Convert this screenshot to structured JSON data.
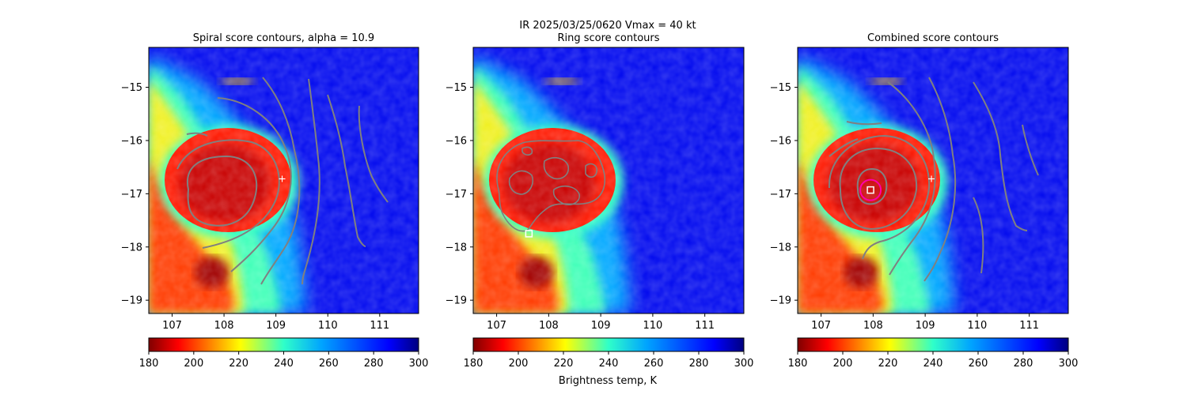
{
  "figure": {
    "suptitle_line1": "IR  2025/03/25/0620    Vmax = 40 kt",
    "colorbar_label": "Brightness temp, K"
  },
  "chart_data": [
    {
      "type": "heatmap",
      "title": "Spiral score contours, alpha = 10.9",
      "xticks": [
        107,
        108,
        109,
        110,
        111
      ],
      "yticks": [
        -15,
        -16,
        -17,
        -18,
        -19
      ],
      "xlim": [
        106.55,
        111.75
      ],
      "ylim": [
        -19.25,
        -14.25
      ],
      "colormap": "jet_r",
      "markers": [
        {
          "symbol": "plus",
          "x": 109.12,
          "y": -16.72,
          "color": "#ffffff"
        }
      ],
      "colorbar": {
        "ticks": [
          180,
          200,
          220,
          240,
          260,
          280,
          300
        ],
        "range": [
          180,
          300
        ]
      }
    },
    {
      "type": "heatmap",
      "title": "Ring score contours",
      "xticks": [
        107,
        108,
        109,
        110,
        111
      ],
      "yticks": [
        -15,
        -16,
        -17,
        -18,
        -19
      ],
      "xlim": [
        106.55,
        111.75
      ],
      "ylim": [
        -19.25,
        -14.25
      ],
      "colormap": "jet_r",
      "markers": [
        {
          "symbol": "square",
          "x": 107.62,
          "y": -17.75,
          "color": "#ffffff"
        }
      ],
      "colorbar": {
        "ticks": [
          180,
          200,
          220,
          240,
          260,
          280,
          300
        ],
        "range": [
          180,
          300
        ]
      }
    },
    {
      "type": "heatmap",
      "title": "Combined score contours",
      "xticks": [
        107,
        108,
        109,
        110,
        111
      ],
      "yticks": [
        -15,
        -16,
        -17,
        -18,
        -19
      ],
      "xlim": [
        106.55,
        111.75
      ],
      "ylim": [
        -19.25,
        -14.25
      ],
      "colormap": "jet_r",
      "markers": [
        {
          "symbol": "plus",
          "x": 109.12,
          "y": -16.72,
          "color": "#ffffff"
        },
        {
          "symbol": "square",
          "x": 107.95,
          "y": -16.93,
          "color": "#ffffff"
        },
        {
          "symbol": "circle",
          "x": 107.95,
          "y": -16.93,
          "color": "#ff00aa"
        }
      ],
      "colorbar": {
        "ticks": [
          180,
          200,
          220,
          240,
          260,
          280,
          300
        ],
        "range": [
          180,
          300
        ]
      }
    }
  ],
  "colors": {
    "contour": "#808080",
    "cold_core": "#cc0000",
    "background_warm": "#0010dd"
  }
}
